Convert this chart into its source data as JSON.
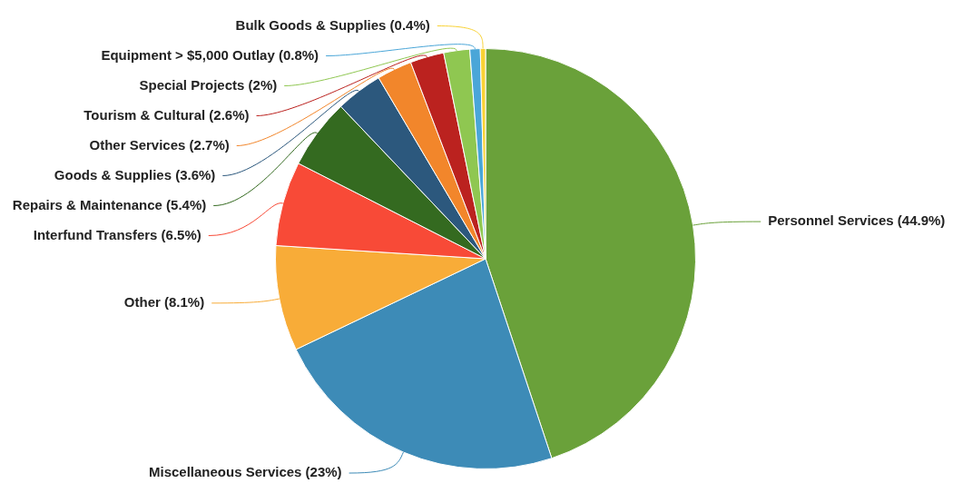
{
  "chart_data": {
    "type": "pie",
    "categories": [
      "Personnel Services",
      "Miscellaneous Services",
      "Other",
      "Interfund Transfers",
      "Repairs & Maintenance",
      "Goods & Supplies",
      "Other Services",
      "Tourism & Cultural",
      "Special Projects",
      "Equipment > $5,000 Outlay",
      "Bulk Goods & Supplies"
    ],
    "values": [
      44.9,
      23,
      8.1,
      6.5,
      5.4,
      3.6,
      2.7,
      2.6,
      2,
      0.8,
      0.4
    ],
    "value_labels": [
      "(44.9%)",
      "(23%)",
      "(8.1%)",
      "(6.5%)",
      "(5.4%)",
      "(3.6%)",
      "(2.7%)",
      "(2.6%)",
      "(2%)",
      "(0.8%)",
      "(0.4%)"
    ],
    "colors": [
      "#6aa13a",
      "#3d8bb7",
      "#f8ac38",
      "#f84a37",
      "#346a20",
      "#2c587d",
      "#f2862b",
      "#bb221f",
      "#8fc751",
      "#4aa6d8",
      "#f9d234"
    ],
    "legend": false
  }
}
